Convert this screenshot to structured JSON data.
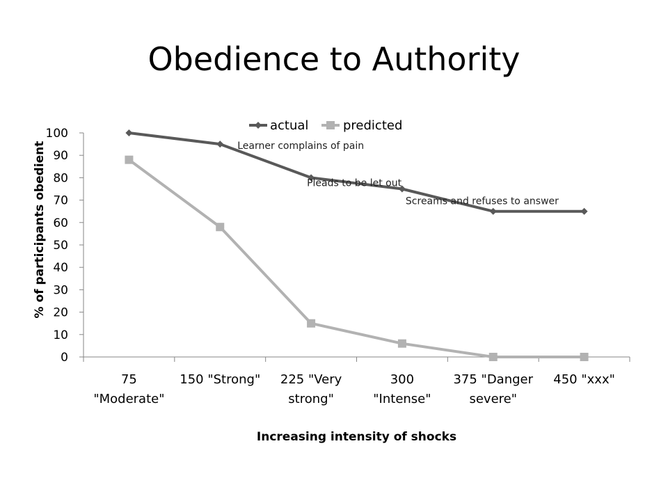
{
  "slide": {
    "title": "Obedience to Authority"
  },
  "chart_data": {
    "type": "line",
    "title": "",
    "xlabel": "Increasing intensity of shocks",
    "ylabel": "% of participants obedient",
    "ylim": [
      0,
      100
    ],
    "yticks": [
      0,
      10,
      20,
      30,
      40,
      50,
      60,
      70,
      80,
      90,
      100
    ],
    "grid": false,
    "legend_position": "top",
    "categories": [
      [
        "75",
        "\"Moderate\""
      ],
      [
        "150 \"Strong\""
      ],
      [
        "225 \"Very",
        "strong\""
      ],
      [
        "300",
        "\"Intense\""
      ],
      [
        "375 \"Danger",
        "severe\""
      ],
      [
        "450 \"xxx\""
      ]
    ],
    "series": [
      {
        "name": "actual",
        "values": [
          100,
          95,
          80,
          75,
          65,
          65
        ],
        "color": "#595959",
        "marker": "diamond"
      },
      {
        "name": "predicted",
        "values": [
          88,
          58,
          15,
          6,
          0,
          0
        ],
        "color": "#b2b2b2",
        "marker": "square"
      }
    ],
    "annotations": [
      {
        "text": "Learner complains of pain",
        "category_index": 1,
        "value": 95
      },
      {
        "text": "Pleads to be let out",
        "category_index": 2,
        "value": 80
      },
      {
        "text": "Screams and refuses to answer",
        "category_index": 3,
        "value": 75
      }
    ]
  }
}
